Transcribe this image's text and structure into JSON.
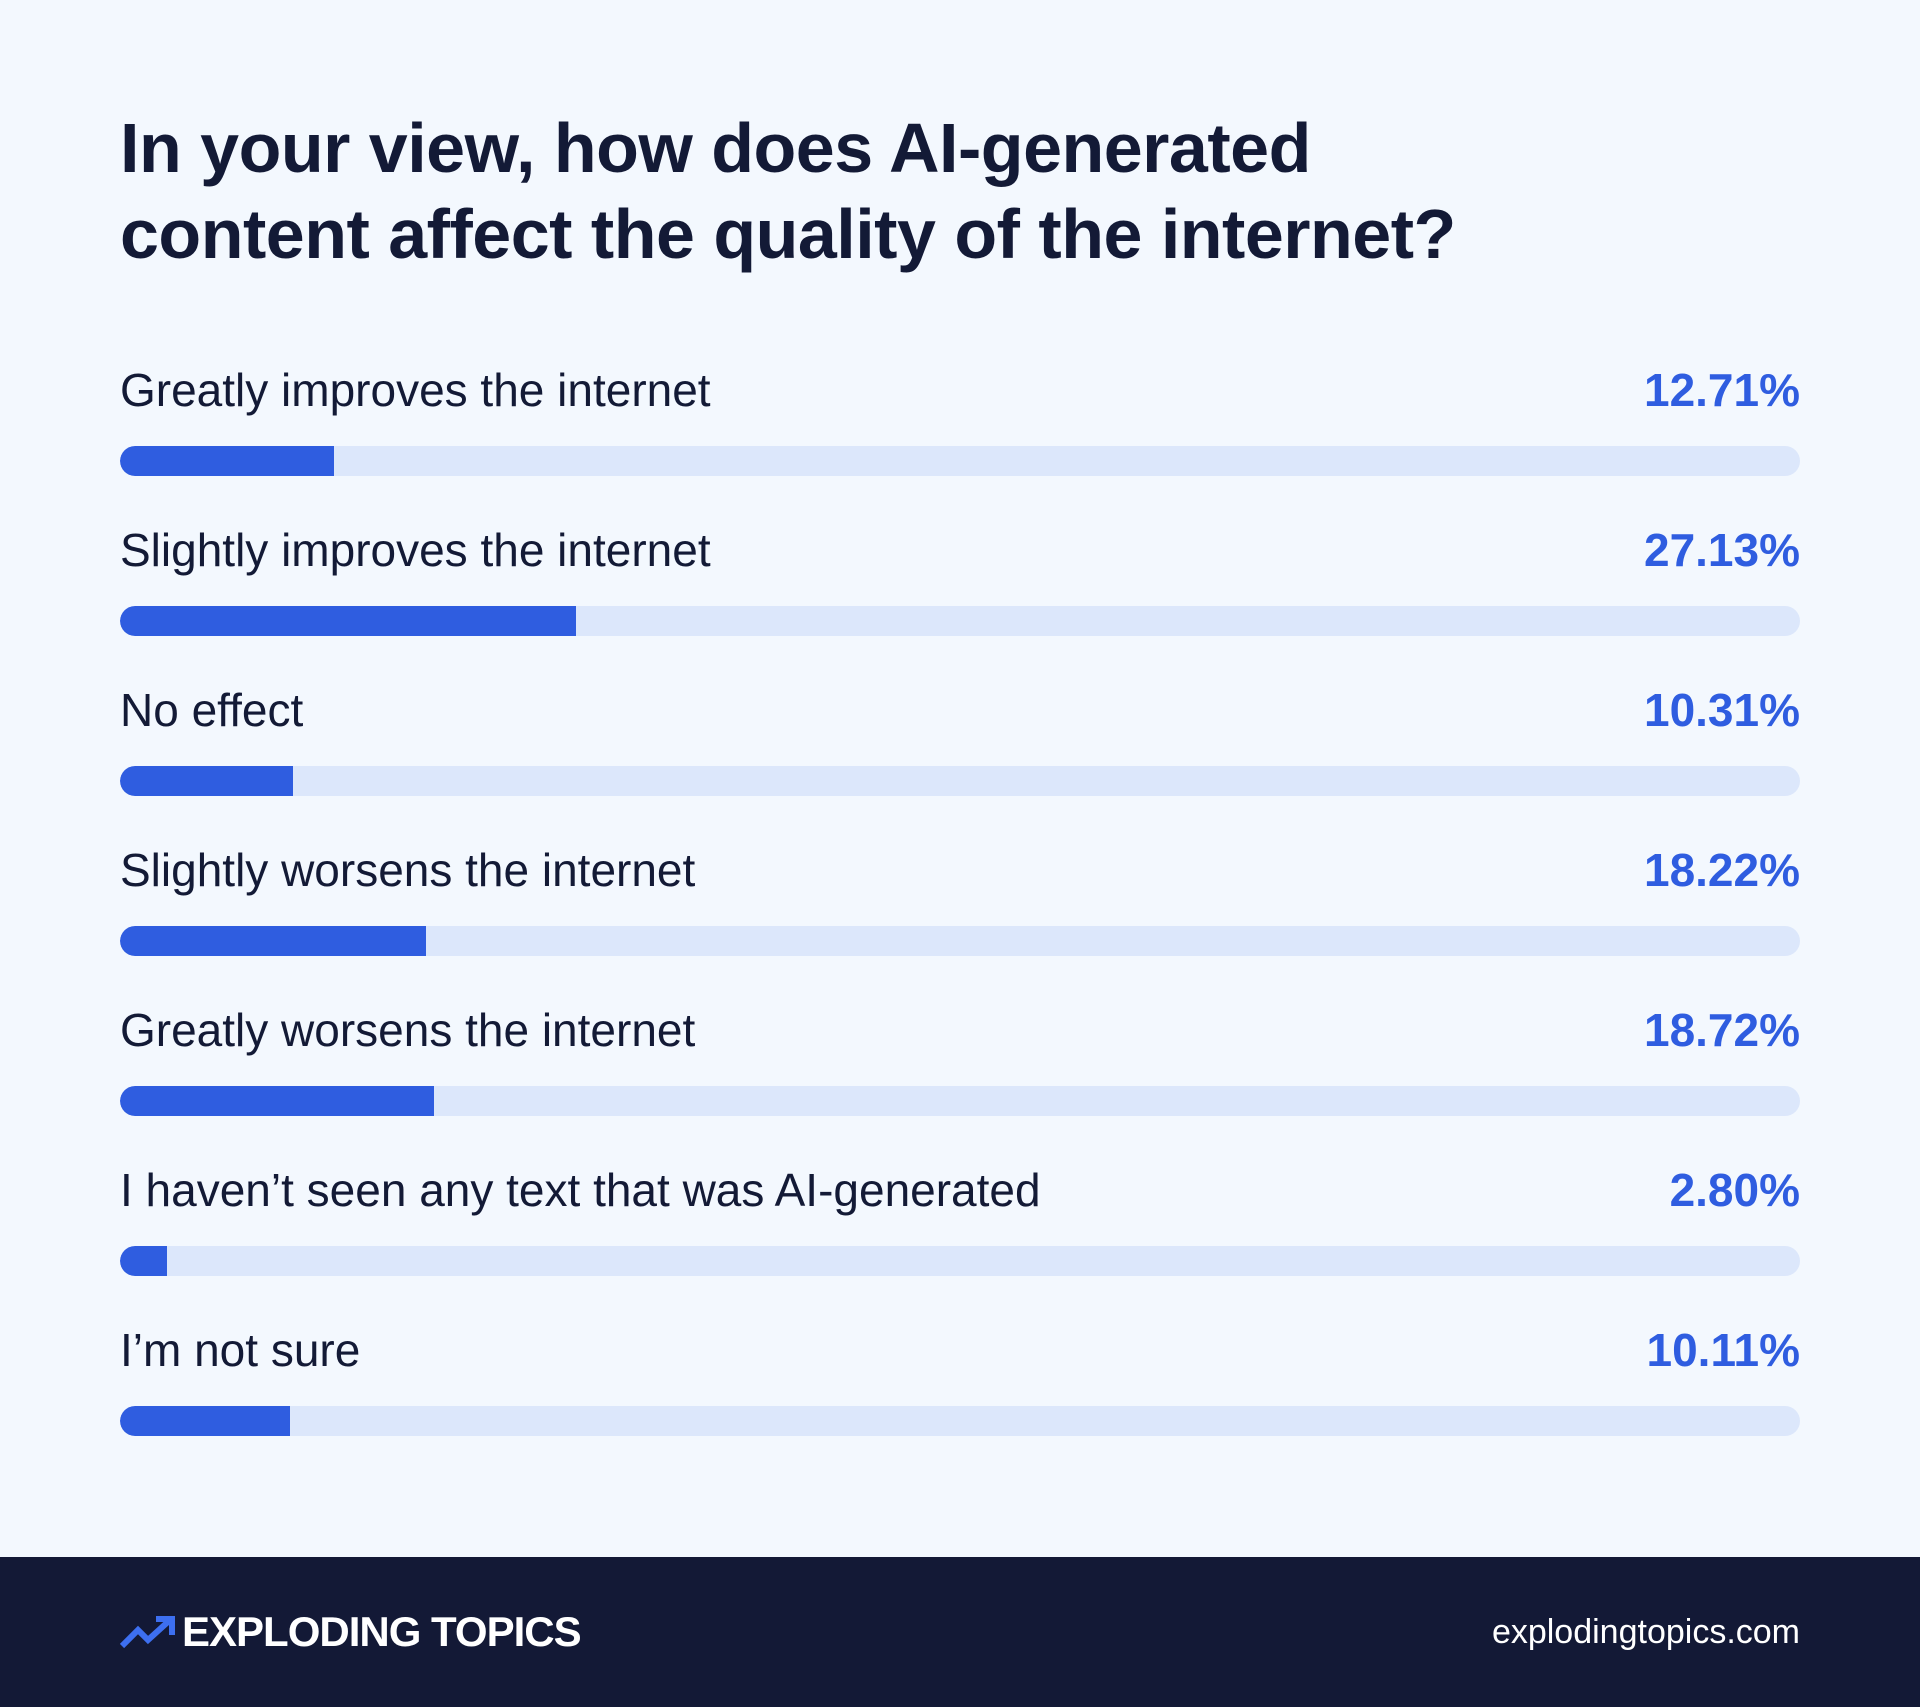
{
  "chart_data": {
    "type": "bar",
    "orientation": "horizontal",
    "title": "In your view, how does AI-generated content affect the quality of the internet?",
    "title_lines": [
      "In your view, how does AI-generated",
      "content affect the quality of the internet?"
    ],
    "categories": [
      "Greatly improves the internet",
      "Slightly improves the internet",
      "No effect",
      "Slightly worsens the internet",
      "Greatly worsens the internet",
      "I haven’t seen any text that was AI-generated",
      "I’m not sure"
    ],
    "values": [
      12.71,
      27.13,
      10.31,
      18.22,
      18.72,
      2.8,
      10.11
    ],
    "value_labels": [
      "12.71%",
      "27.13%",
      "10.31%",
      "18.22%",
      "18.72%",
      "2.80%",
      "10.11%"
    ],
    "xlim": [
      0,
      100
    ],
    "unit": "%",
    "grid": false,
    "legend": "none"
  },
  "colors": {
    "background": "#f3f8fe",
    "bar_fill": "#2f5de0",
    "bar_track": "#dce7fb",
    "value_text": "#2f5de0",
    "title_text": "#131a36",
    "footer_background": "#131936",
    "footer_text": "#ffffff",
    "logo_accent": "#3d6ff0"
  },
  "footer": {
    "brand_icon": "trend-arrow-icon",
    "brand_name": "EXPLODING TOPICS",
    "site_url": "explodingtopics.com"
  }
}
